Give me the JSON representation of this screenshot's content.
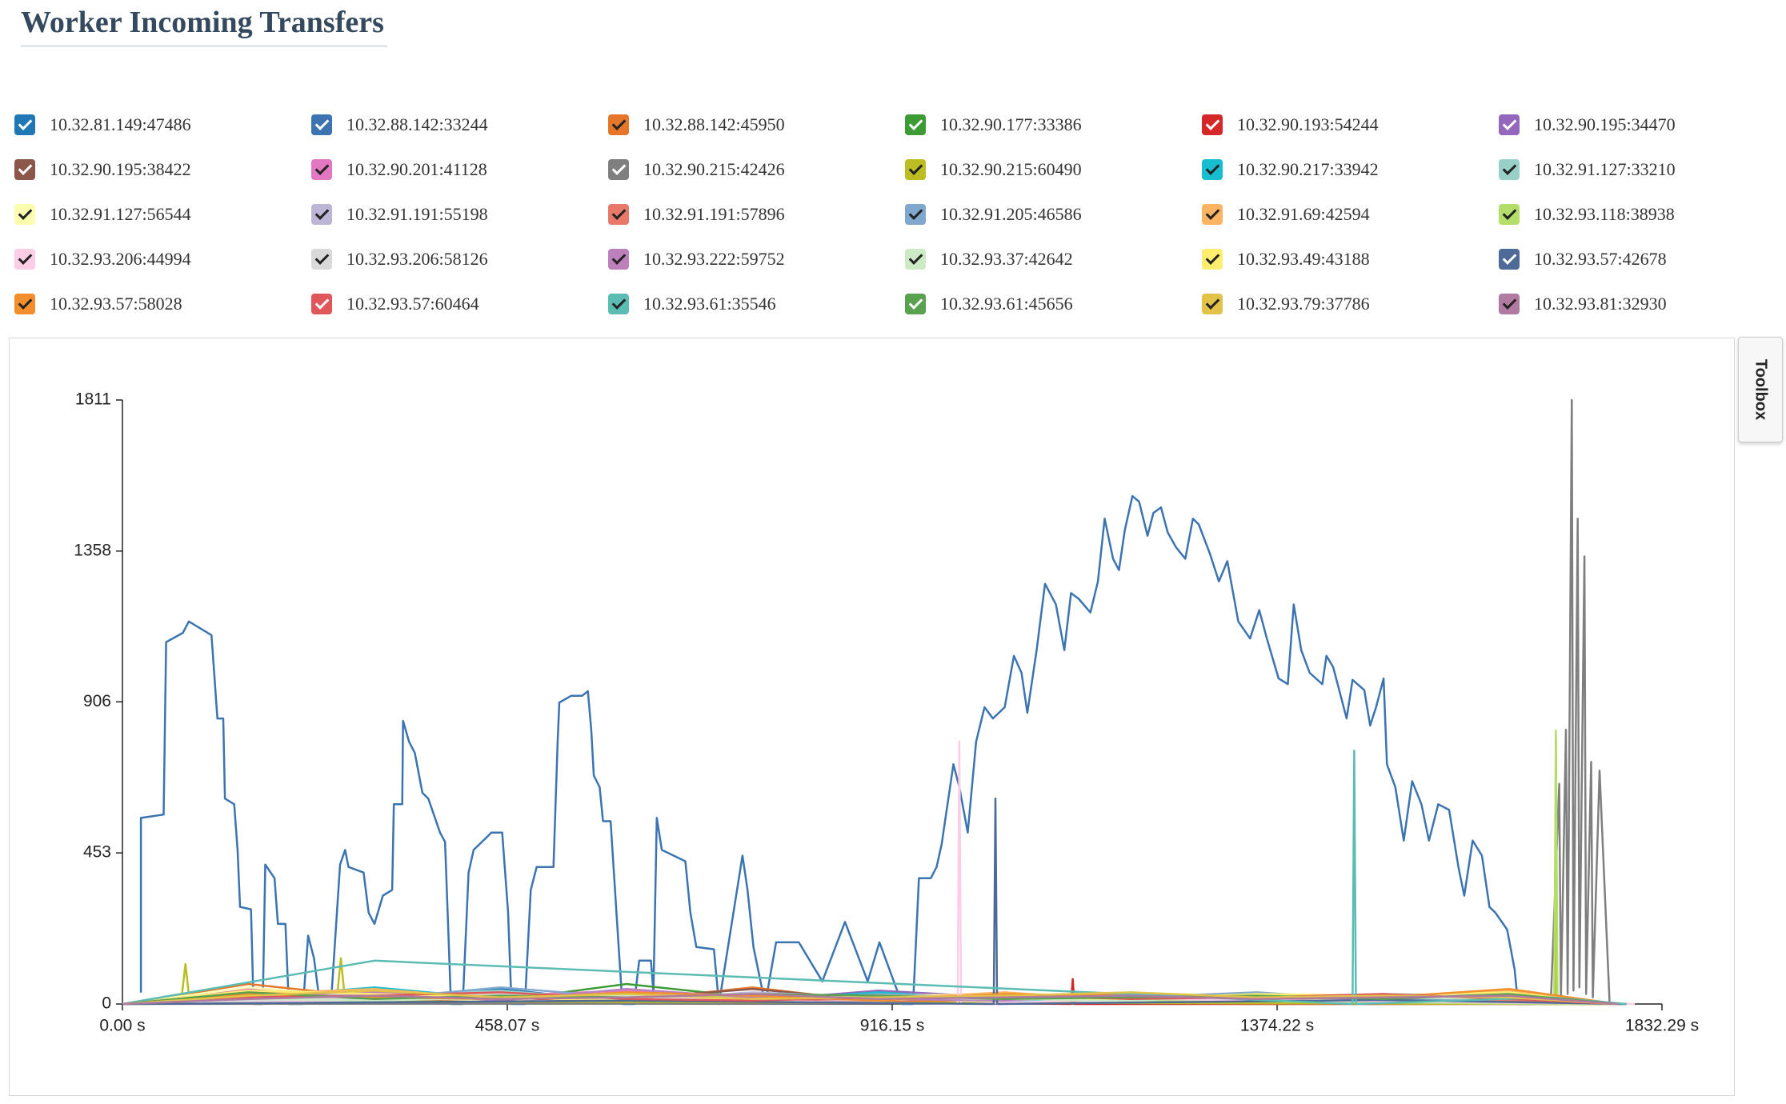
{
  "toolbox": {
    "label": "Toolbox"
  },
  "chart_data": {
    "type": "line",
    "title": "Worker Incoming Transfers",
    "xlim": [
      0,
      1832.29
    ],
    "ylim": [
      0,
      1811
    ],
    "xticks": [
      {
        "value": 0,
        "label": "0.00 s"
      },
      {
        "value": 458.07,
        "label": "458.07 s"
      },
      {
        "value": 916.15,
        "label": "916.15 s"
      },
      {
        "value": 1374.22,
        "label": "1374.22 s"
      },
      {
        "value": 1832.29,
        "label": "1832.29 s"
      }
    ],
    "yticks": [
      0,
      453,
      906,
      1358,
      1811
    ],
    "series": [
      {
        "name": "10.32.81.149:47486",
        "color": "#1f77b4",
        "x": [
          0,
          150,
          300,
          450,
          600,
          750,
          900,
          1050,
          1200,
          1350,
          1500,
          1650,
          1780
        ],
        "values": [
          0,
          30,
          10,
          45,
          5,
          20,
          8,
          25,
          15,
          30,
          10,
          40,
          0
        ]
      },
      {
        "name": "10.32.88.142:33244",
        "color": "#3b74b0",
        "x": [
          22,
          22,
          49,
          52,
          72,
          79,
          106,
          113,
          120,
          122,
          133,
          137,
          140,
          153,
          156,
          167,
          170,
          181,
          185,
          194,
          198,
          215,
          221,
          228,
          235,
          249,
          259,
          265,
          269,
          287,
          293,
          300,
          310,
          321,
          323,
          333,
          334,
          341,
          348,
          357,
          364,
          371,
          378,
          384,
          391,
          405,
          412,
          418,
          432,
          439,
          452,
          459,
          463,
          479,
          486,
          493,
          513,
          518,
          520,
          534,
          547,
          554,
          558,
          561,
          568,
          572,
          581,
          588,
          595,
          609,
          615,
          629,
          632,
          636,
          642,
          656,
          670,
          676,
          683,
          704,
          710,
          738,
          744,
          751,
          765,
          778,
          805,
          833,
          860,
          887,
          901,
          928,
          941,
          948,
          962,
          969,
          975,
          989,
          996,
          1006,
          1016,
          1026,
          1036,
          1050,
          1061,
          1070,
          1077,
          1088,
          1098,
          1111,
          1121,
          1129,
          1138,
          1152,
          1161,
          1169,
          1179,
          1186,
          1193,
          1202,
          1210,
          1220,
          1227,
          1236,
          1244,
          1254,
          1265,
          1274,
          1281,
          1294,
          1305,
          1315,
          1328,
          1342,
          1353,
          1362,
          1376,
          1387,
          1394,
          1403,
          1413,
          1428,
          1433,
          1441,
          1457,
          1464,
          1478,
          1485,
          1492,
          1501,
          1505,
          1515,
          1525,
          1535,
          1546,
          1555,
          1566,
          1579,
          1590,
          1597,
          1607,
          1618,
          1627,
          1634,
          1648,
          1657,
          1661,
          1675
        ],
        "values": [
          34,
          558,
          568,
          1085,
          1113,
          1147,
          1106,
          856,
          856,
          616,
          599,
          462,
          291,
          284,
          0,
          0,
          418,
          377,
          240,
          240,
          0,
          0,
          205,
          137,
          0,
          34,
          418,
          462,
          411,
          394,
          274,
          240,
          325,
          342,
          599,
          599,
          849,
          787,
          753,
          633,
          616,
          565,
          514,
          486,
          0,
          0,
          394,
          462,
          496,
          514,
          514,
          274,
          0,
          0,
          342,
          411,
          411,
          787,
          904,
          924,
          924,
          938,
          822,
          685,
          650,
          548,
          548,
          274,
          0,
          0,
          130,
          130,
          34,
          558,
          462,
          445,
          428,
          274,
          171,
          164,
          0,
          445,
          342,
          171,
          0,
          185,
          185,
          68,
          246,
          68,
          185,
          0,
          0,
          377,
          377,
          411,
          479,
          719,
          650,
          514,
          787,
          890,
          856,
          890,
          1044,
          993,
          873,
          1061,
          1260,
          1198,
          1061,
          1232,
          1215,
          1174,
          1267,
          1455,
          1335,
          1301,
          1421,
          1523,
          1506,
          1404,
          1472,
          1489,
          1414,
          1369,
          1335,
          1455,
          1438,
          1352,
          1267,
          1328,
          1147,
          1096,
          1181,
          1096,
          976,
          959,
          1198,
          1061,
          993,
          959,
          1044,
          1010,
          856,
          972,
          941,
          835,
          890,
          976,
          719,
          650,
          490,
          668,
          599,
          490,
          599,
          582,
          411,
          325,
          490,
          445,
          291,
          274,
          223,
          103,
          0,
          0
        ]
      },
      {
        "name": "10.32.88.142:45950",
        "color": "#e6762a",
        "x": [
          0,
          150,
          300,
          450,
          600,
          750,
          900,
          1050,
          1200,
          1350,
          1500,
          1650,
          1780
        ],
        "values": [
          0,
          60,
          20,
          35,
          10,
          50,
          5,
          15,
          25,
          10,
          20,
          30,
          0
        ]
      },
      {
        "name": "10.32.90.177:33386",
        "color": "#3d9b35",
        "x": [
          0,
          150,
          300,
          450,
          600,
          750,
          900,
          1050,
          1200,
          1350,
          1500,
          1650,
          1780
        ],
        "values": [
          0,
          15,
          40,
          10,
          60,
          20,
          30,
          10,
          20,
          15,
          25,
          10,
          0
        ]
      },
      {
        "name": "10.32.90.193:54244",
        "color": "#d62728",
        "x": [
          0,
          500,
          1129,
          1131,
          1133,
          1790
        ],
        "values": [
          0,
          15,
          0,
          75,
          0,
          0
        ]
      },
      {
        "name": "10.32.90.195:34470",
        "color": "#9467bd",
        "x": [
          0,
          150,
          300,
          450,
          600,
          750,
          900,
          1050,
          1200,
          1350,
          1500,
          1650,
          1780
        ],
        "values": [
          0,
          25,
          5,
          30,
          20,
          10,
          40,
          20,
          10,
          25,
          15,
          20,
          0
        ]
      },
      {
        "name": "10.32.90.195:38422",
        "color": "#8c564b",
        "x": [
          0,
          150,
          300,
          450,
          600,
          750,
          900,
          1050,
          1200,
          1350,
          1500,
          1650,
          1780
        ],
        "values": [
          0,
          10,
          35,
          20,
          15,
          45,
          10,
          30,
          20,
          10,
          30,
          15,
          0
        ]
      },
      {
        "name": "10.32.90.201:41128",
        "color": "#e377c2",
        "x": [
          0,
          150,
          300,
          450,
          600,
          750,
          900,
          1050,
          1200,
          1350,
          1500,
          1650,
          1780
        ],
        "values": [
          0,
          45,
          15,
          25,
          40,
          10,
          20,
          15,
          30,
          20,
          10,
          25,
          0
        ]
      },
      {
        "name": "10.32.90.215:42426",
        "color": "#7f7f7f",
        "x": [
          0,
          1700,
          1710,
          1712,
          1718,
          1720,
          1725,
          1727,
          1732,
          1734,
          1740,
          1742,
          1748,
          1750,
          1758,
          1770
        ],
        "values": [
          0,
          5,
          660,
          20,
          822,
          30,
          1811,
          40,
          1455,
          50,
          1342,
          30,
          726,
          20,
          700,
          0
        ]
      },
      {
        "name": "10.32.90.215:60490",
        "color": "#bcbd22",
        "x": [
          0,
          70,
          75,
          80,
          255,
          260,
          265,
          1705,
          1706,
          1707,
          1770
        ],
        "values": [
          0,
          10,
          120,
          5,
          10,
          137,
          8,
          0,
          800,
          0,
          0
        ]
      },
      {
        "name": "10.32.90.217:33942",
        "color": "#17becf",
        "x": [
          0,
          150,
          300,
          450,
          600,
          750,
          900,
          1050,
          1200,
          1350,
          1500,
          1650,
          1780
        ],
        "values": [
          0,
          20,
          50,
          15,
          25,
          10,
          35,
          10,
          15,
          30,
          20,
          15,
          0
        ]
      },
      {
        "name": "10.32.91.127:33210",
        "color": "#98d0c7",
        "x": [
          0,
          150,
          300,
          450,
          600,
          750,
          900,
          1050,
          1200,
          1350,
          1500,
          1650,
          1780
        ],
        "values": [
          0,
          35,
          25,
          40,
          10,
          30,
          15,
          25,
          10,
          20,
          30,
          25,
          0
        ]
      },
      {
        "name": "10.32.91.127:56544",
        "color": "#fdfdb0",
        "x": [
          0,
          150,
          300,
          450,
          600,
          750,
          900,
          1050,
          1200,
          1350,
          1500,
          1650,
          1780
        ],
        "values": [
          0,
          50,
          20,
          10,
          30,
          15,
          25,
          30,
          20,
          10,
          15,
          20,
          0
        ]
      },
      {
        "name": "10.32.91.191:55198",
        "color": "#bcb5d6",
        "x": [
          0,
          150,
          300,
          450,
          600,
          750,
          900,
          1050,
          1200,
          1350,
          1500,
          1650,
          1780
        ],
        "values": [
          0,
          15,
          30,
          20,
          10,
          35,
          20,
          10,
          25,
          15,
          20,
          30,
          0
        ]
      },
      {
        "name": "10.32.91.191:57896",
        "color": "#e8786a",
        "x": [
          0,
          150,
          300,
          450,
          600,
          750,
          900,
          1050,
          1200,
          1350,
          1500,
          1650,
          1780
        ],
        "values": [
          0,
          40,
          10,
          30,
          25,
          15,
          10,
          20,
          30,
          20,
          25,
          10,
          0
        ]
      },
      {
        "name": "10.32.91.205:46586",
        "color": "#80a8cf",
        "x": [
          0,
          150,
          300,
          450,
          600,
          750,
          900,
          1050,
          1200,
          1350,
          1500,
          1650,
          1780
        ],
        "values": [
          0,
          20,
          15,
          50,
          20,
          10,
          30,
          15,
          20,
          35,
          10,
          20,
          0
        ]
      },
      {
        "name": "10.32.91.69:42594",
        "color": "#fdb462",
        "x": [
          0,
          150,
          300,
          450,
          600,
          750,
          900,
          1050,
          1200,
          1350,
          1500,
          1650,
          1780
        ],
        "values": [
          0,
          30,
          45,
          15,
          20,
          25,
          15,
          35,
          10,
          25,
          20,
          40,
          0
        ]
      },
      {
        "name": "10.32.93.118:38938",
        "color": "#b3de69",
        "x": [
          0,
          400,
          600,
          1704,
          1706,
          1708,
          1780
        ],
        "values": [
          0,
          15,
          25,
          0,
          820,
          0,
          0
        ]
      },
      {
        "name": "10.32.93.206:44994",
        "color": "#fccde5",
        "x": [
          0,
          500,
          994,
          996,
          998,
          1200,
          1800
        ],
        "values": [
          0,
          20,
          0,
          787,
          0,
          15,
          0
        ]
      },
      {
        "name": "10.32.93.206:58126",
        "color": "#d9d9d9",
        "x": [
          0,
          150,
          300,
          450,
          600,
          750,
          900,
          1050,
          1200,
          1350,
          1500,
          1650,
          1780
        ],
        "values": [
          0,
          10,
          20,
          30,
          15,
          20,
          10,
          25,
          20,
          15,
          30,
          20,
          0
        ]
      },
      {
        "name": "10.32.93.222:59752",
        "color": "#bc80bd",
        "x": [
          0,
          150,
          300,
          450,
          600,
          750,
          900,
          1050,
          1200,
          1350,
          1500,
          1650,
          1780
        ],
        "values": [
          0,
          25,
          35,
          10,
          45,
          20,
          15,
          10,
          30,
          20,
          15,
          25,
          0
        ]
      },
      {
        "name": "10.32.93.37:42642",
        "color": "#ccebc5",
        "x": [
          0,
          150,
          300,
          450,
          600,
          750,
          900,
          1050,
          1200,
          1350,
          1500,
          1650,
          1780
        ],
        "values": [
          0,
          15,
          10,
          20,
          25,
          30,
          20,
          15,
          10,
          25,
          20,
          15,
          0
        ]
      },
      {
        "name": "10.32.93.49:43188",
        "color": "#ffed6f",
        "x": [
          0,
          150,
          300,
          450,
          600,
          750,
          900,
          1050,
          1200,
          1350,
          1500,
          1650,
          1780
        ],
        "values": [
          0,
          40,
          30,
          20,
          10,
          15,
          25,
          20,
          15,
          30,
          25,
          35,
          0
        ]
      },
      {
        "name": "10.32.93.57:42678",
        "color": "#4e6a97",
        "x": [
          0,
          600,
          1037,
          1039,
          1041,
          1500,
          1790
        ],
        "values": [
          0,
          10,
          0,
          616,
          0,
          12,
          0
        ]
      },
      {
        "name": "10.32.93.57:58028",
        "color": "#f28e2b",
        "x": [
          0,
          150,
          300,
          450,
          600,
          750,
          900,
          1050,
          1200,
          1350,
          1500,
          1650,
          1780
        ],
        "values": [
          0,
          30,
          20,
          15,
          35,
          25,
          10,
          30,
          25,
          15,
          20,
          45,
          0
        ]
      },
      {
        "name": "10.32.93.57:60464",
        "color": "#e15759",
        "x": [
          0,
          150,
          300,
          450,
          600,
          750,
          900,
          1050,
          1200,
          1350,
          1500,
          1650,
          1780
        ],
        "values": [
          0,
          20,
          25,
          35,
          15,
          10,
          20,
          25,
          15,
          20,
          30,
          15,
          0
        ]
      },
      {
        "name": "10.32.93.61:35546",
        "color": "#5bbcb4",
        "x": [
          0,
          300,
          1464,
          1466,
          1468,
          1700,
          1790
        ],
        "values": [
          0,
          130,
          0,
          760,
          0,
          20,
          0
        ]
      },
      {
        "name": "10.32.93.61:45656",
        "color": "#59a14f",
        "x": [
          0,
          150,
          300,
          450,
          600,
          750,
          900,
          1050,
          1200,
          1350,
          1500,
          1650,
          1780
        ],
        "values": [
          0,
          35,
          15,
          25,
          20,
          30,
          25,
          15,
          20,
          25,
          15,
          30,
          0
        ]
      },
      {
        "name": "10.32.93.79:37786",
        "color": "#e2c348",
        "x": [
          0,
          150,
          300,
          450,
          600,
          750,
          900,
          1050,
          1200,
          1350,
          1500,
          1650,
          1780
        ],
        "values": [
          0,
          25,
          40,
          20,
          30,
          15,
          20,
          25,
          35,
          20,
          25,
          20,
          0
        ]
      },
      {
        "name": "10.32.93.81:32930",
        "color": "#b07aa1",
        "x": [
          0,
          150,
          300,
          450,
          600,
          750,
          900,
          1050,
          1200,
          1350,
          1500,
          1650,
          1780
        ],
        "values": [
          0,
          15,
          25,
          15,
          20,
          30,
          15,
          20,
          25,
          15,
          20,
          25,
          0
        ]
      }
    ]
  }
}
